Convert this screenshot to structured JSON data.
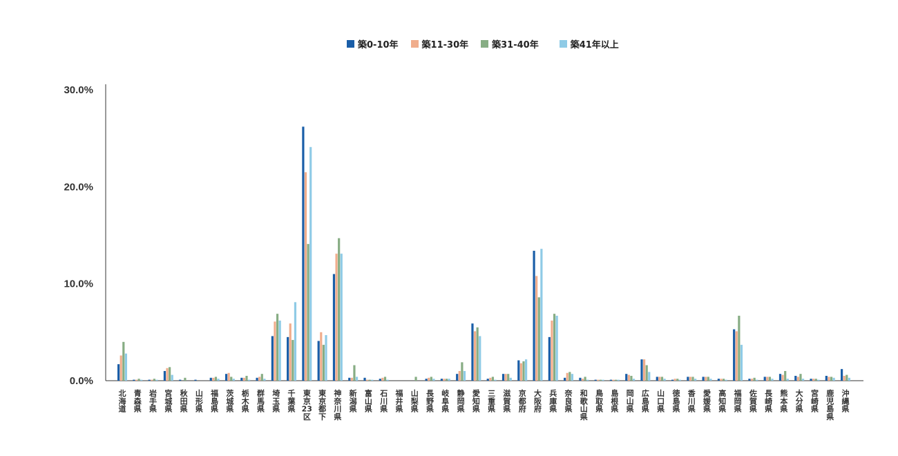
{
  "chart_data": {
    "type": "bar",
    "title": "",
    "xlabel": "",
    "ylabel": "",
    "ylim": [
      0,
      30
    ],
    "y_ticks": [
      "0.0%",
      "10.0%",
      "20.0%",
      "30.0%"
    ],
    "y_tick_values": [
      0,
      10,
      20,
      30
    ],
    "grid": false,
    "legend_position": "top-center",
    "categories": [
      "北海道",
      "青森県",
      "岩手県",
      "宮城県",
      "秋田県",
      "山形県",
      "福島県",
      "茨城県",
      "栃木県",
      "群馬県",
      "埼玉県",
      "千葉県",
      "東京23区",
      "東京都下",
      "神奈川県",
      "新潟県",
      "富山県",
      "石川県",
      "福井県",
      "山梨県",
      "長野県",
      "岐阜県",
      "静岡県",
      "愛知県",
      "三重県",
      "滋賀県",
      "京都府",
      "大阪府",
      "兵庫県",
      "奈良県",
      "和歌山県",
      "鳥取県",
      "島根県",
      "岡山県",
      "広島県",
      "山口県",
      "徳島県",
      "香川県",
      "愛媛県",
      "高知県",
      "福岡県",
      "佐賀県",
      "長崎県",
      "熊本県",
      "大分県",
      "宮崎県",
      "鹿児島県",
      "沖縄県"
    ],
    "series": [
      {
        "name": "築0-10年",
        "color": "#1a5ea8",
        "values": [
          1.7,
          0.1,
          0.1,
          1.0,
          0.1,
          0.1,
          0.3,
          0.7,
          0.3,
          0.3,
          4.6,
          4.5,
          26.2,
          4.1,
          11.0,
          0.3,
          0.3,
          0.2,
          0.0,
          0.0,
          0.2,
          0.2,
          0.7,
          5.9,
          0.2,
          0.7,
          2.1,
          13.4,
          4.5,
          0.3,
          0.3,
          0.1,
          0.1,
          0.7,
          2.2,
          0.4,
          0.1,
          0.4,
          0.4,
          0.2,
          5.3,
          0.2,
          0.4,
          0.7,
          0.5,
          0.2,
          0.5,
          1.2
        ]
      },
      {
        "name": "築11-30年",
        "color": "#f0ad8c",
        "values": [
          2.6,
          0.1,
          0.1,
          1.3,
          0.0,
          0.0,
          0.3,
          0.8,
          0.3,
          0.4,
          6.1,
          5.9,
          21.5,
          5.0,
          13.1,
          0.3,
          0.1,
          0.3,
          0.0,
          0.0,
          0.3,
          0.2,
          1.0,
          5.1,
          0.3,
          0.7,
          1.8,
          10.8,
          6.2,
          0.8,
          0.2,
          0.1,
          0.1,
          0.6,
          2.2,
          0.4,
          0.2,
          0.4,
          0.4,
          0.2,
          5.1,
          0.2,
          0.4,
          0.6,
          0.4,
          0.2,
          0.4,
          0.5
        ]
      },
      {
        "name": "築31-40年",
        "color": "#87ad84",
        "values": [
          4.0,
          0.2,
          0.2,
          1.4,
          0.3,
          0.0,
          0.4,
          0.4,
          0.5,
          0.7,
          6.9,
          4.2,
          14.1,
          3.7,
          14.7,
          1.6,
          0.1,
          0.4,
          0.0,
          0.4,
          0.4,
          0.2,
          1.9,
          5.5,
          0.4,
          0.7,
          2.0,
          8.6,
          6.9,
          0.9,
          0.4,
          0.1,
          0.1,
          0.5,
          1.6,
          0.4,
          0.2,
          0.4,
          0.4,
          0.2,
          6.7,
          0.3,
          0.4,
          1.0,
          0.7,
          0.2,
          0.4,
          0.6
        ]
      },
      {
        "name": "築41年以上",
        "color": "#8fcbe6",
        "values": [
          2.8,
          0.1,
          0.1,
          0.6,
          0.0,
          0.0,
          0.2,
          0.2,
          0.1,
          0.2,
          6.2,
          8.1,
          24.1,
          4.7,
          13.1,
          0.4,
          0.1,
          0.1,
          0.0,
          0.0,
          0.2,
          0.2,
          1.0,
          4.6,
          0.1,
          0.3,
          2.2,
          13.6,
          6.7,
          0.7,
          0.1,
          0.1,
          0.1,
          0.2,
          0.9,
          0.2,
          0.1,
          0.2,
          0.2,
          0.1,
          3.7,
          0.1,
          0.2,
          0.2,
          0.2,
          0.1,
          0.3,
          0.3
        ]
      }
    ]
  }
}
